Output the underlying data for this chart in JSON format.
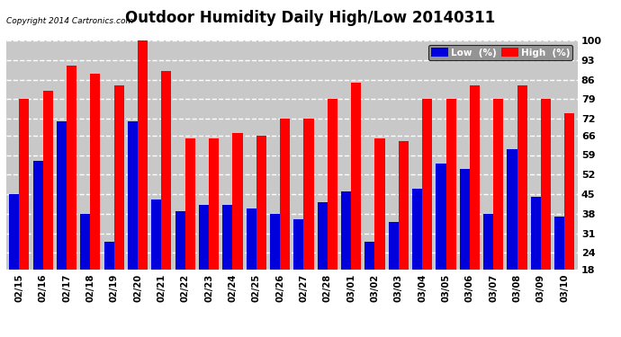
{
  "title": "Outdoor Humidity Daily High/Low 20140311",
  "copyright": "Copyright 2014 Cartronics.com",
  "dates": [
    "02/15",
    "02/16",
    "02/17",
    "02/18",
    "02/19",
    "02/20",
    "02/21",
    "02/22",
    "02/23",
    "02/24",
    "02/25",
    "02/26",
    "02/27",
    "02/28",
    "03/01",
    "03/02",
    "03/03",
    "03/04",
    "03/05",
    "03/06",
    "03/07",
    "03/08",
    "03/09",
    "03/10"
  ],
  "high": [
    79,
    82,
    91,
    88,
    84,
    100,
    89,
    65,
    65,
    67,
    66,
    72,
    72,
    79,
    85,
    65,
    64,
    79,
    79,
    84,
    79,
    84,
    79,
    74
  ],
  "low": [
    45,
    57,
    71,
    38,
    28,
    71,
    43,
    39,
    41,
    41,
    40,
    38,
    36,
    42,
    46,
    28,
    35,
    47,
    56,
    54,
    38,
    61,
    44,
    37
  ],
  "high_color": "#ff0000",
  "low_color": "#0000dd",
  "bg_color": "#ffffff",
  "plot_bg_color": "#c8c8c8",
  "grid_color": "#ffffff",
  "ylim": [
    18,
    100
  ],
  "yticks": [
    18,
    24,
    31,
    38,
    45,
    52,
    59,
    66,
    72,
    79,
    86,
    93,
    100
  ],
  "bar_width": 0.42,
  "title_fontsize": 12,
  "legend_label_low": "Low  (%)",
  "legend_label_high": "High  (%)"
}
